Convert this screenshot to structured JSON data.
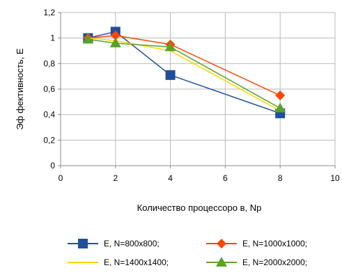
{
  "chart_data": {
    "type": "scatter",
    "title": "",
    "xlabel": "Количество процессоро в, Np",
    "ylabel": "Эф фективность, E",
    "xlim": [
      0,
      10
    ],
    "ylim": [
      0,
      1.2
    ],
    "x_ticks": [
      "0",
      "2",
      "4",
      "6",
      "8",
      "10"
    ],
    "y_ticks": [
      "0",
      "0,2",
      "0,4",
      "0,6",
      "0,8",
      "1",
      "1,2"
    ],
    "grid": true,
    "legend_position": "bottom",
    "series": [
      {
        "name": "E, N=800x800;",
        "color": "#1f4e9c",
        "marker": "square",
        "x": [
          1,
          2,
          4,
          8
        ],
        "y": [
          1.0,
          1.05,
          0.71,
          0.41
        ]
      },
      {
        "name": "E, N=1000x1000;",
        "color": "#ff4500",
        "marker": "diamond",
        "x": [
          1,
          2,
          4,
          8
        ],
        "y": [
          1.0,
          1.02,
          0.95,
          0.55
        ]
      },
      {
        "name": "E, N=1400x1400;",
        "color": "#ffd700",
        "marker": "none",
        "x": [
          1,
          2,
          4,
          8
        ],
        "y": [
          1.0,
          0.98,
          0.9,
          0.43
        ]
      },
      {
        "name": "E, N=2000x2000;",
        "color": "#5aa02c",
        "marker": "triangle",
        "x": [
          1,
          2,
          4,
          8
        ],
        "y": [
          0.99,
          0.96,
          0.93,
          0.45
        ]
      }
    ]
  }
}
